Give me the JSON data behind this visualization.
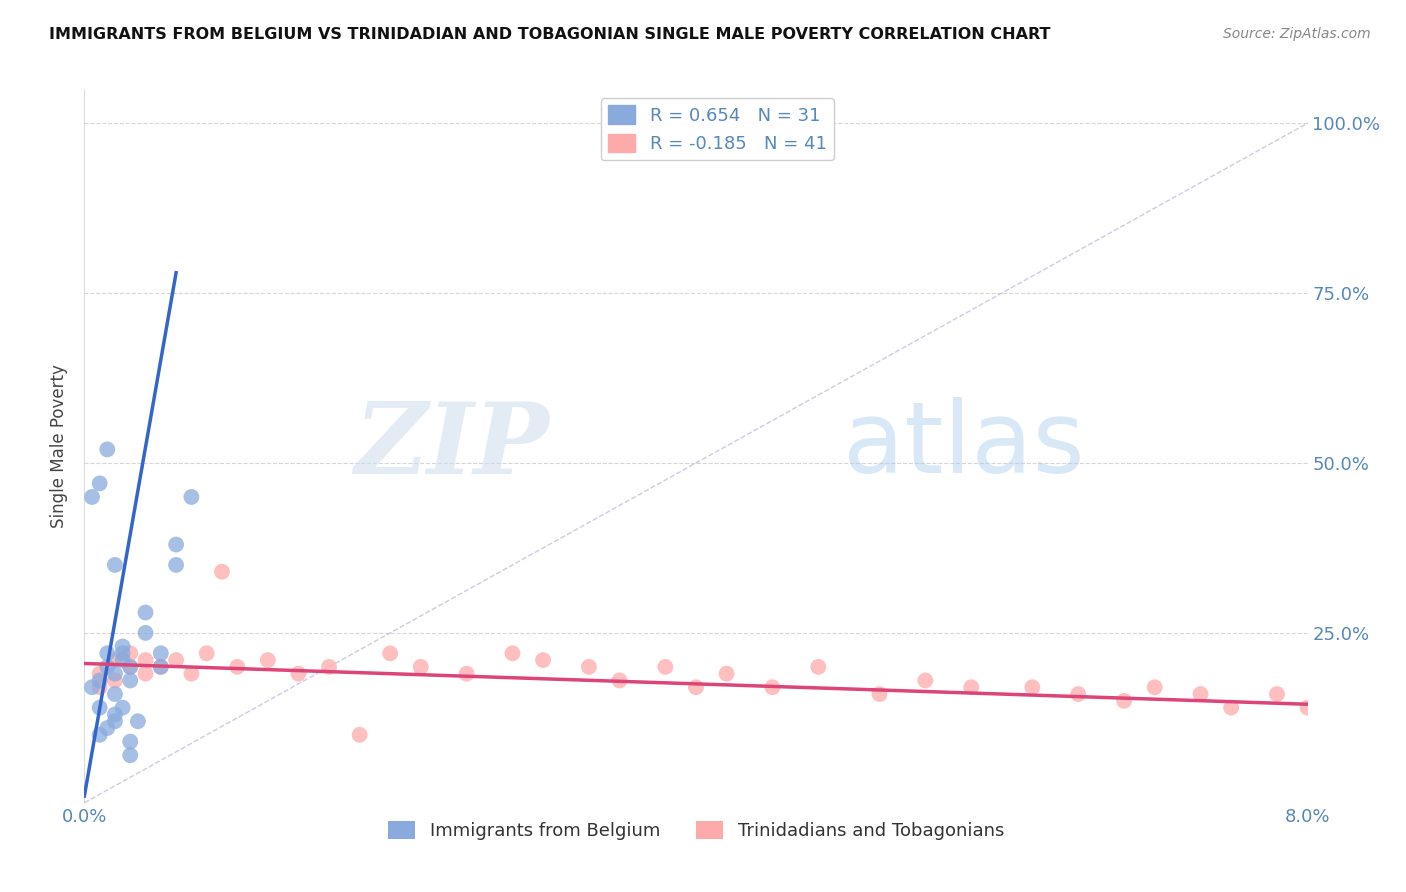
{
  "title": "IMMIGRANTS FROM BELGIUM VS TRINIDADIAN AND TOBAGONIAN SINGLE MALE POVERTY CORRELATION CHART",
  "source": "Source: ZipAtlas.com",
  "ylabel": "Single Male Poverty",
  "legend_label_belgium": "Immigrants from Belgium",
  "legend_label_tt": "Trinidadians and Tobagonians",
  "watermark_zip": "ZIP",
  "watermark_atlas": "atlas",
  "background_color": "#ffffff",
  "grid_color": "#CCCCCC",
  "belgium_color": "#88AADD",
  "tt_color": "#FFAAAA",
  "trendline_blue": "#3366CC",
  "trendline_pink": "#DD4477",
  "belgium_R": 0.654,
  "belgium_N": 31,
  "tt_R": -0.185,
  "tt_N": 41,
  "xlim": [
    0.0,
    0.08
  ],
  "ylim": [
    0.0,
    1.05
  ],
  "y_ticks": [
    0.0,
    0.25,
    0.5,
    0.75,
    1.0
  ],
  "y_tick_labels_right": [
    "",
    "25.0%",
    "50.0%",
    "75.0%",
    "100.0%"
  ],
  "belgium_x": [
    0.0005,
    0.001,
    0.001,
    0.0015,
    0.0015,
    0.002,
    0.002,
    0.002,
    0.0025,
    0.0025,
    0.003,
    0.003,
    0.003,
    0.004,
    0.004,
    0.005,
    0.005,
    0.006,
    0.006,
    0.007,
    0.001,
    0.0015,
    0.002,
    0.0025,
    0.003,
    0.0035,
    0.0005,
    0.001,
    0.0015,
    0.002,
    0.0025
  ],
  "belgium_y": [
    0.17,
    0.18,
    0.14,
    0.2,
    0.22,
    0.19,
    0.16,
    0.13,
    0.21,
    0.22,
    0.2,
    0.18,
    0.07,
    0.25,
    0.28,
    0.22,
    0.2,
    0.35,
    0.38,
    0.45,
    0.1,
    0.11,
    0.12,
    0.14,
    0.09,
    0.12,
    0.45,
    0.47,
    0.52,
    0.35,
    0.23
  ],
  "tt_x": [
    0.001,
    0.001,
    0.002,
    0.002,
    0.003,
    0.003,
    0.004,
    0.004,
    0.005,
    0.006,
    0.007,
    0.008,
    0.009,
    0.01,
    0.012,
    0.014,
    0.016,
    0.018,
    0.02,
    0.022,
    0.025,
    0.028,
    0.03,
    0.033,
    0.035,
    0.038,
    0.04,
    0.042,
    0.045,
    0.048,
    0.052,
    0.055,
    0.058,
    0.062,
    0.065,
    0.068,
    0.07,
    0.073,
    0.075,
    0.078,
    0.08
  ],
  "tt_y": [
    0.19,
    0.17,
    0.21,
    0.18,
    0.2,
    0.22,
    0.19,
    0.21,
    0.2,
    0.21,
    0.19,
    0.22,
    0.34,
    0.2,
    0.21,
    0.19,
    0.2,
    0.1,
    0.22,
    0.2,
    0.19,
    0.22,
    0.21,
    0.2,
    0.18,
    0.2,
    0.17,
    0.19,
    0.17,
    0.2,
    0.16,
    0.18,
    0.17,
    0.17,
    0.16,
    0.15,
    0.17,
    0.16,
    0.14,
    0.16,
    0.14
  ],
  "bel_trend_x0": 0.0,
  "bel_trend_y0": 0.01,
  "bel_trend_x1": 0.006,
  "bel_trend_y1": 0.78,
  "tt_trend_x0": 0.0,
  "tt_trend_y0": 0.205,
  "tt_trend_x1": 0.08,
  "tt_trend_y1": 0.145
}
